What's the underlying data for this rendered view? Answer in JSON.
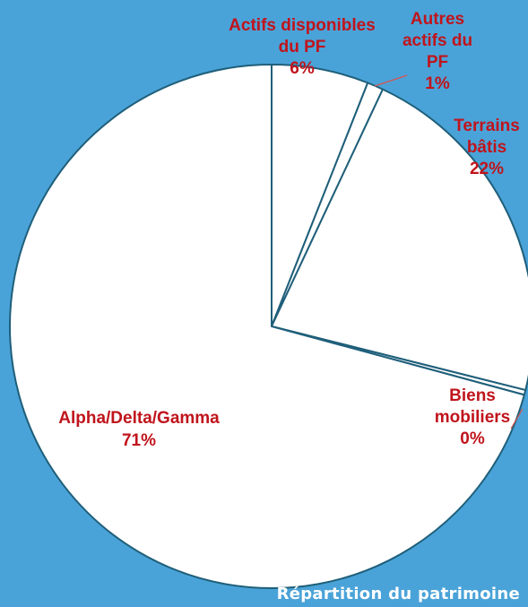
{
  "chart_data": {
    "type": "pie",
    "title": "Répartition du patrimoine",
    "slices": [
      {
        "label": [
          "Actifs disponibles",
          "du PF",
          "6%"
        ],
        "value": 6
      },
      {
        "label": [
          "Autres",
          "actifs du",
          "PF",
          "1%"
        ],
        "value": 1
      },
      {
        "label": [
          "Terrains",
          "bâtis",
          "22%"
        ],
        "value": 22
      },
      {
        "label": [
          "Biens",
          "mobiliers",
          "0%"
        ],
        "value": 0.3
      },
      {
        "label": [
          "Alpha/Delta/Gamma",
          "71%"
        ],
        "value": 71
      }
    ],
    "colors": {
      "background": "#4aa3d8",
      "slice_fill": "#ffffff",
      "slice_stroke": "#1f5f7a",
      "label_color": "#c0141c",
      "leader_color": "#d9534f",
      "caption_color": "#ffffff"
    }
  }
}
